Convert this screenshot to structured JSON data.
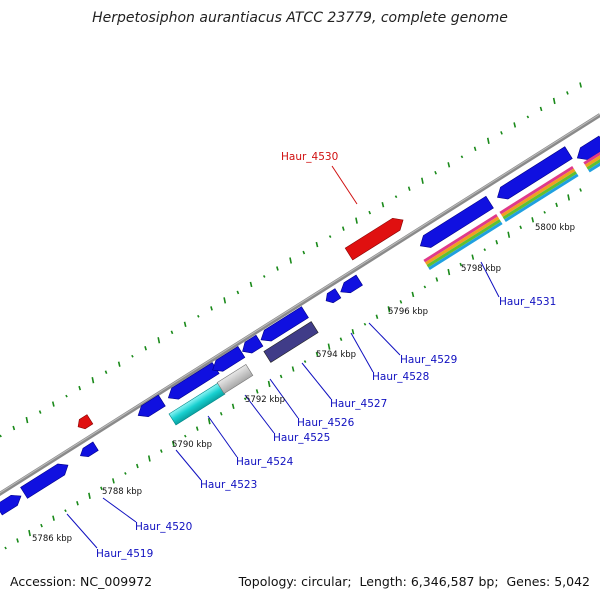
{
  "title": "Herpetosiphon aurantiacus ATCC 23779, complete genome",
  "footer": {
    "accession_label": "Accession:",
    "accession": "NC_009972",
    "topology_label": "Topology:",
    "topology": "circular",
    "length_label": "Length:",
    "length": "6,346,587 bp",
    "genes_label": "Genes:",
    "genes": "5,042"
  },
  "colors": {
    "cds": "#1010e0",
    "highlight": "#e01010",
    "rna_cyan": "#20d8d8",
    "rna_gray": "#c0c0c0",
    "rna_purple": "#403c88",
    "backbone": "#888888",
    "gc_tick": "#1a8a1a",
    "label_blue": "#1010c0",
    "label_red": "#d01010"
  },
  "scale_labels": [
    "5786 kbp",
    "5788 kbp",
    "5790 kbp",
    "5792 kbp",
    "5794 kbp",
    "5796 kbp",
    "5798 kbp",
    "5800 kbp"
  ],
  "gene_labels": [
    {
      "name": "Haur_4519",
      "color": "blue"
    },
    {
      "name": "Haur_4520",
      "color": "blue"
    },
    {
      "name": "Haur_4523",
      "color": "blue"
    },
    {
      "name": "Haur_4524",
      "color": "blue"
    },
    {
      "name": "Haur_4525",
      "color": "blue"
    },
    {
      "name": "Haur_4526",
      "color": "blue"
    },
    {
      "name": "Haur_4527",
      "color": "blue"
    },
    {
      "name": "Haur_4528",
      "color": "blue"
    },
    {
      "name": "Haur_4529",
      "color": "blue"
    },
    {
      "name": "Haur_4531",
      "color": "blue"
    },
    {
      "name": "Haur_4530",
      "color": "red"
    }
  ]
}
